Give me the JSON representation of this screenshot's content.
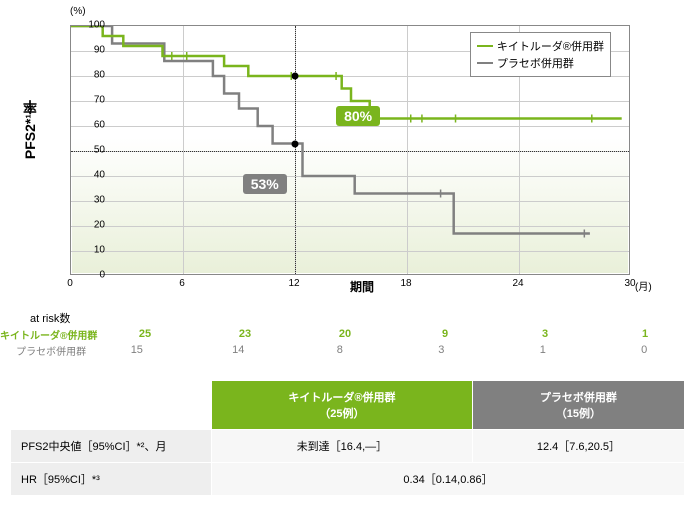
{
  "chart": {
    "type": "kaplan-meier",
    "ylabel": "PFS2*¹率",
    "yunit": "(%)",
    "xlabel": "期間",
    "xunit": "(月)",
    "xlim": [
      0,
      30
    ],
    "ylim": [
      0,
      100
    ],
    "xticks": [
      0,
      6,
      12,
      18,
      24,
      30
    ],
    "yticks": [
      0,
      10,
      20,
      30,
      40,
      50,
      60,
      70,
      80,
      90,
      100
    ],
    "ref_y": 50,
    "ref_x": 12,
    "background_gradient": [
      "#ffffff",
      "#e9f0d9"
    ],
    "frame_color": "#888888",
    "grid_color": "#cccccc",
    "series": {
      "keytruda": {
        "label": "キイトルーダ®併用群",
        "color": "#7ab51d",
        "line_width": 2.5,
        "points": [
          [
            0,
            100
          ],
          [
            1.7,
            100
          ],
          [
            1.7,
            96
          ],
          [
            2.8,
            96
          ],
          [
            2.8,
            92
          ],
          [
            4.9,
            92
          ],
          [
            4.9,
            88
          ],
          [
            8.2,
            88
          ],
          [
            8.2,
            84
          ],
          [
            9.5,
            84
          ],
          [
            9.5,
            80
          ],
          [
            14.5,
            80
          ],
          [
            14.5,
            75
          ],
          [
            15.0,
            75
          ],
          [
            15.0,
            70
          ],
          [
            16.0,
            70
          ],
          [
            16.0,
            63
          ],
          [
            29.5,
            63
          ]
        ],
        "censor_x": [
          5.4,
          6.2,
          11.8,
          14.2,
          18.2,
          18.8,
          20.6,
          27.9
        ],
        "callout": {
          "text": "80%",
          "x": 14.2,
          "y": 68
        }
      },
      "placebo": {
        "label": "プラセボ併用群",
        "color": "#808080",
        "line_width": 2.5,
        "points": [
          [
            0,
            100
          ],
          [
            2.2,
            100
          ],
          [
            2.2,
            93
          ],
          [
            5.0,
            93
          ],
          [
            5.0,
            86
          ],
          [
            7.6,
            86
          ],
          [
            7.6,
            80
          ],
          [
            8.2,
            80
          ],
          [
            8.2,
            73
          ],
          [
            9.0,
            73
          ],
          [
            9.0,
            67
          ],
          [
            10.0,
            67
          ],
          [
            10.0,
            60
          ],
          [
            10.8,
            60
          ],
          [
            10.8,
            53
          ],
          [
            12.4,
            53
          ],
          [
            12.4,
            40
          ],
          [
            15.2,
            40
          ],
          [
            15.2,
            33
          ],
          [
            20.5,
            33
          ],
          [
            20.5,
            17
          ],
          [
            27.8,
            17
          ]
        ],
        "censor_x": [
          19.8,
          27.5
        ],
        "callout": {
          "text": "53%",
          "x": 9.2,
          "y": 41
        }
      }
    },
    "marker_12": {
      "keytruda_y": 80,
      "placebo_y": 53
    }
  },
  "at_risk": {
    "title": "at risk数",
    "times": [
      0,
      6,
      12,
      18,
      24,
      30
    ],
    "keytruda": {
      "label": "キイトルーダ®併用群",
      "values": [
        25,
        23,
        20,
        9,
        3,
        1
      ]
    },
    "placebo": {
      "label": "プラセボ併用群",
      "values": [
        15,
        14,
        8,
        3,
        1,
        0
      ]
    }
  },
  "summary": {
    "col1_header": "キイトルーダ®併用群",
    "col1_sub": "（25例）",
    "col2_header": "プラセボ併用群",
    "col2_sub": "（15例）",
    "row1_label": "PFS2中央値［95%CI］*²、月",
    "row1_v1": "未到達［16.4,—］",
    "row1_v2": "12.4［7.6,20.5］",
    "row2_label": "HR［95%CI］*³",
    "row2_v": "0.34［0.14,0.86］"
  }
}
